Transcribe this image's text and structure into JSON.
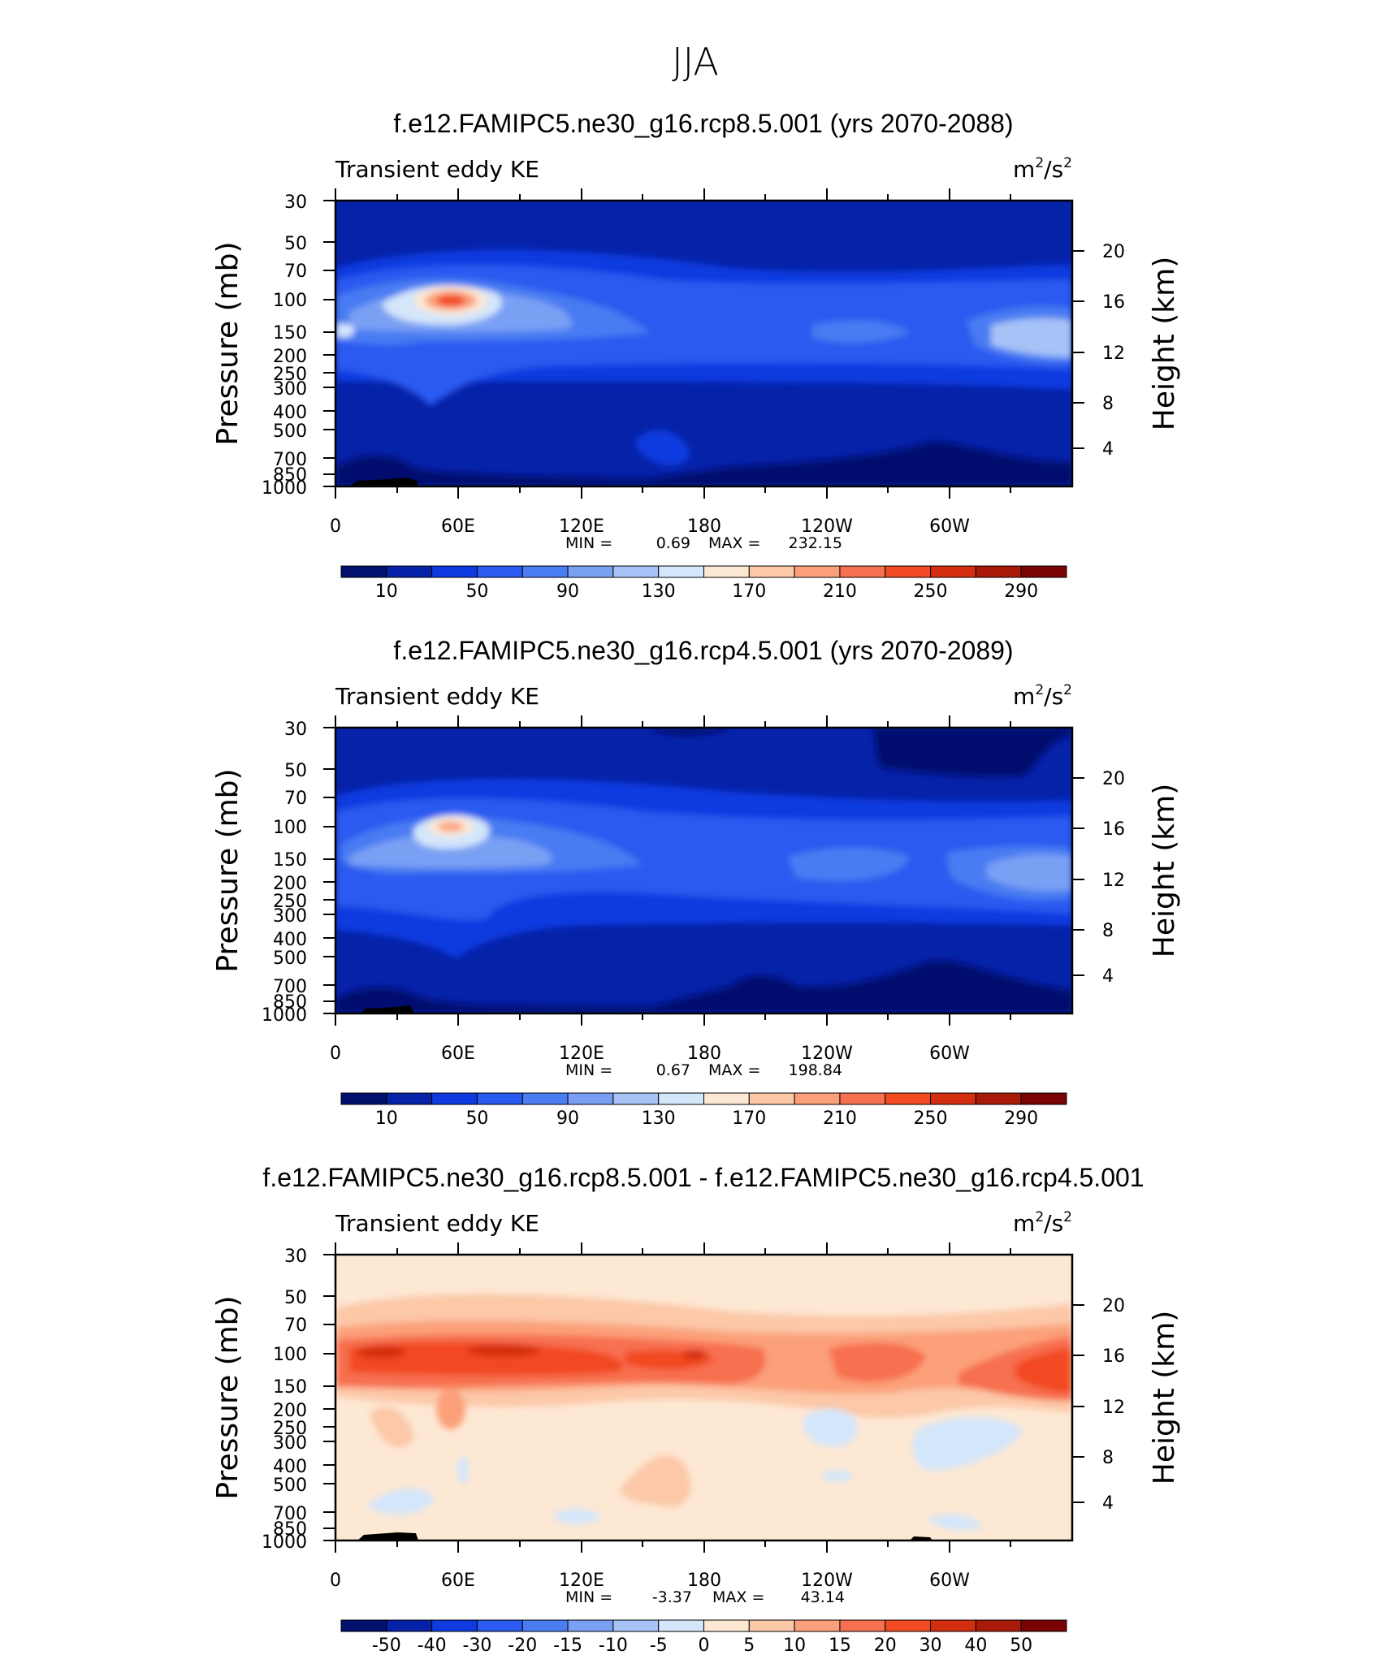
{
  "figure_title": "JJA",
  "chart_data": [
    {
      "type": "heatmap",
      "title": "f.e12.FAMIPC5.ne30_g16.rcp8.5.001 (yrs 2070-2088)",
      "left_label": "Transient eddy KE",
      "units_base": "m",
      "units_sup1": "2",
      "units_mid": "/s",
      "units_sup2": "2",
      "ylabel": "Pressure (mb)",
      "ylabel_right": "Height (km)",
      "x_ticks": [
        "0",
        "60E",
        "120E",
        "180",
        "120W",
        "60W"
      ],
      "x_range": [
        0,
        360
      ],
      "y_ticks": [
        "30",
        "50",
        "70",
        "100",
        "150",
        "200",
        "250",
        "300",
        "400",
        "500",
        "700",
        "850",
        "1000"
      ],
      "y_range": [
        1000,
        30
      ],
      "height_ticks": [
        "20",
        "16",
        "12",
        "8",
        "4"
      ],
      "min_label": "MIN =",
      "min_value": "0.69",
      "max_label": "MAX =",
      "max_value": "232.15",
      "colorbar_labels": [
        "10",
        "50",
        "90",
        "130",
        "170",
        "210",
        "250",
        "290"
      ],
      "colorbar_colors": [
        "#02106e",
        "#0622a8",
        "#0e3ae0",
        "#2a5af0",
        "#4a7cf2",
        "#7aa0f4",
        "#a6c2f6",
        "#d4e6fa",
        "#fde8d4",
        "#fcc8a8",
        "#fba07a",
        "#f77050",
        "#f24a22",
        "#d42e10",
        "#aa1a08",
        "#7a0404"
      ],
      "structure": {
        "lon": [
          0,
          30,
          60,
          90,
          120,
          150,
          180,
          210,
          240,
          270,
          300,
          330,
          360
        ],
        "pressure": [
          1000,
          850,
          700,
          500,
          400,
          300,
          250,
          200,
          150,
          100,
          70,
          50,
          30
        ],
        "max_at": {
          "lon": 57,
          "pressure": 100
        }
      }
    },
    {
      "type": "heatmap",
      "title": "f.e12.FAMIPC5.ne30_g16.rcp4.5.001 (yrs 2070-2089)",
      "left_label": "Transient eddy KE",
      "units_base": "m",
      "units_sup1": "2",
      "units_mid": "/s",
      "units_sup2": "2",
      "ylabel": "Pressure (mb)",
      "ylabel_right": "Height (km)",
      "x_ticks": [
        "0",
        "60E",
        "120E",
        "180",
        "120W",
        "60W"
      ],
      "x_range": [
        0,
        360
      ],
      "y_ticks": [
        "30",
        "50",
        "70",
        "100",
        "150",
        "200",
        "250",
        "300",
        "400",
        "500",
        "700",
        "850",
        "1000"
      ],
      "y_range": [
        1000,
        30
      ],
      "height_ticks": [
        "20",
        "16",
        "12",
        "8",
        "4"
      ],
      "min_label": "MIN =",
      "min_value": "0.67",
      "max_label": "MAX =",
      "max_value": "198.84",
      "colorbar_labels": [
        "10",
        "50",
        "90",
        "130",
        "170",
        "210",
        "250",
        "290"
      ],
      "colorbar_colors": [
        "#02106e",
        "#0622a8",
        "#0e3ae0",
        "#2a5af0",
        "#4a7cf2",
        "#7aa0f4",
        "#a6c2f6",
        "#d4e6fa",
        "#fde8d4",
        "#fcc8a8",
        "#fba07a",
        "#f77050",
        "#f24a22",
        "#d42e10",
        "#aa1a08",
        "#7a0404"
      ],
      "structure": {
        "max_at": {
          "lon": 57,
          "pressure": 100
        }
      }
    },
    {
      "type": "heatmap",
      "title": "f.e12.FAMIPC5.ne30_g16.rcp8.5.001 - f.e12.FAMIPC5.ne30_g16.rcp4.5.001",
      "left_label": "Transient eddy KE",
      "units_base": "m",
      "units_sup1": "2",
      "units_mid": "/s",
      "units_sup2": "2",
      "ylabel": "Pressure (mb)",
      "ylabel_right": "Height (km)",
      "x_ticks": [
        "0",
        "60E",
        "120E",
        "180",
        "120W",
        "60W"
      ],
      "x_range": [
        0,
        360
      ],
      "y_ticks": [
        "30",
        "50",
        "70",
        "100",
        "150",
        "200",
        "250",
        "300",
        "400",
        "500",
        "700",
        "850",
        "1000"
      ],
      "y_range": [
        1000,
        30
      ],
      "height_ticks": [
        "20",
        "16",
        "12",
        "8",
        "4"
      ],
      "min_label": "MIN =",
      "min_value": "-3.37",
      "max_label": "MAX =",
      "max_value": "43.14",
      "colorbar_labels": [
        "-50",
        "-40",
        "-30",
        "-20",
        "-15",
        "-10",
        "-5",
        "0",
        "5",
        "10",
        "15",
        "20",
        "30",
        "40",
        "50"
      ],
      "colorbar_colors": [
        "#02106e",
        "#0622a8",
        "#0e3ae0",
        "#2a5af0",
        "#4a7cf2",
        "#7aa0f4",
        "#a6c2f6",
        "#d4e6fa",
        "#fde8d4",
        "#fcc8a8",
        "#fba07a",
        "#f77050",
        "#f24a22",
        "#d42e10",
        "#aa1a08",
        "#7a0404"
      ],
      "structure": {
        "max_at": {
          "lon": 30,
          "pressure": 100
        }
      }
    }
  ]
}
